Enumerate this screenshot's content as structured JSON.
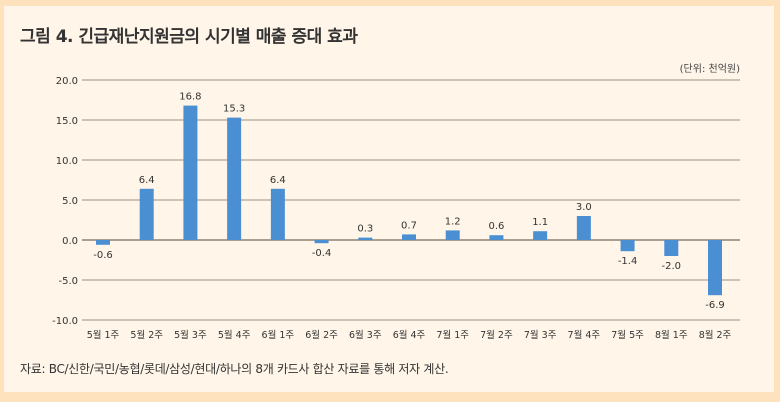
{
  "title": "그림 4.  긴급재난지원금의 시기별 매출 증대 효과",
  "unit": "(단위: 천억원)",
  "source": "자료: BC/신한/국민/농협/롯데/삼성/현대/하나의 8개 카드사 합산 자료를 통해 저자 계산.",
  "colors": {
    "bar": "#4b8fd3",
    "grid": "#7a6a5a",
    "background": "#fff6e9",
    "border": "#fde2bd"
  },
  "chart_data": {
    "type": "bar",
    "categories": [
      "5월 1주",
      "5월 2주",
      "5월 3주",
      "5월 4주",
      "6월 1주",
      "6월 2주",
      "6월 3주",
      "6월 4주",
      "7월 1주",
      "7월 2주",
      "7월 3주",
      "7월 4주",
      "7월 5주",
      "8월 1주",
      "8월 2주"
    ],
    "values": [
      -0.6,
      6.4,
      16.8,
      15.3,
      6.4,
      -0.4,
      0.3,
      0.7,
      1.2,
      0.6,
      1.1,
      3.0,
      -1.4,
      -2.0,
      -6.9
    ],
    "data_labels": [
      "-0.6",
      "6.4",
      "16.8",
      "15.3",
      "6.4",
      "-0.4",
      "0.3",
      "0.7",
      "1.2",
      "0.6",
      "1.1",
      "3.0",
      "-1.4",
      "-2.0",
      "-6.9"
    ],
    "yticks": [
      "20.0",
      "15.0",
      "10.0",
      "5.0",
      "0.0",
      "-5.0",
      "-10.0"
    ],
    "ytick_values": [
      20,
      15,
      10,
      5,
      0,
      -5,
      -10
    ],
    "ylim": [
      -10,
      20
    ],
    "grid": true,
    "title": "그림 4.  긴급재난지원금의 시기별 매출 증대 효과",
    "ylabel": "(단위: 천억원)",
    "xlabel": ""
  }
}
